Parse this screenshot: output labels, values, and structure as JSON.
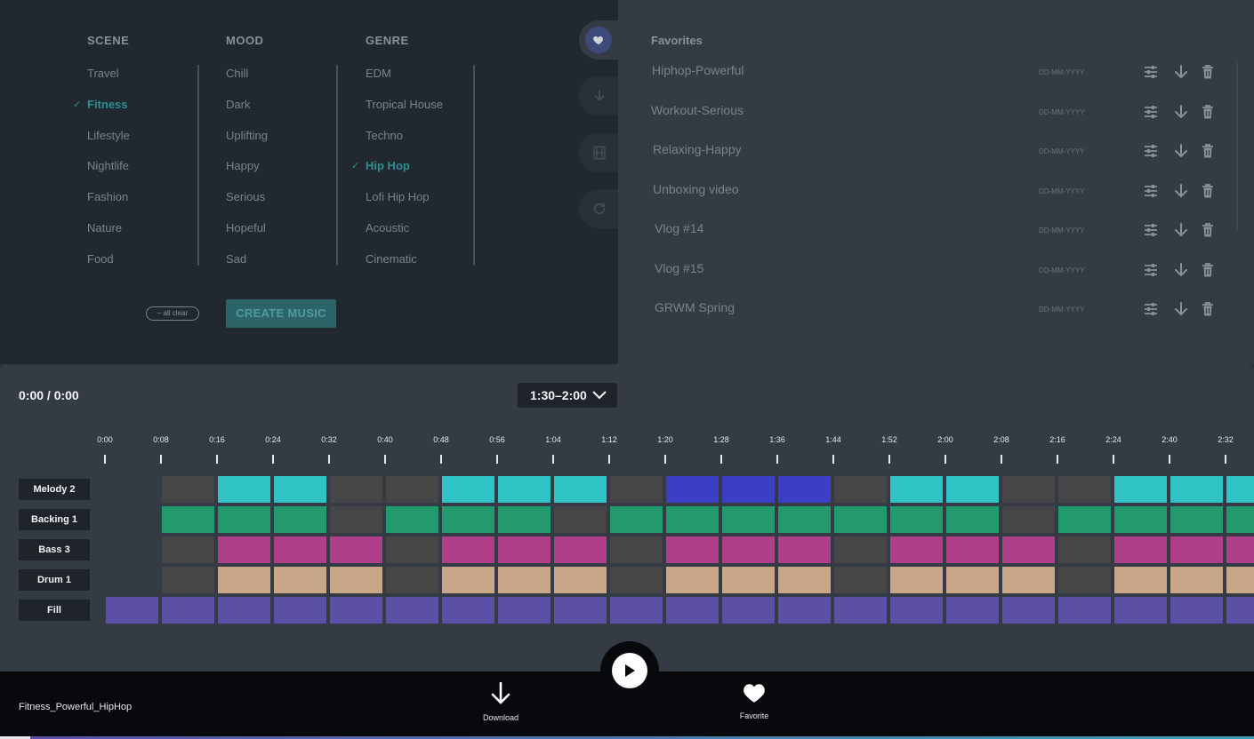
{
  "selector": {
    "scene": {
      "header": "SCENE",
      "items": [
        "Travel",
        "Fitness",
        "Lifestyle",
        "Nightlife",
        "Fashion",
        "Nature",
        "Food"
      ],
      "selected": "Fitness"
    },
    "mood": {
      "header": "MOOD",
      "items": [
        "Chill",
        "Dark",
        "Uplifting",
        "Happy",
        "Serious",
        "Hopeful",
        "Sad"
      ],
      "selected": ""
    },
    "genre": {
      "header": "GENRE",
      "items": [
        "EDM",
        "Tropical House",
        "Techno",
        "Hip Hop",
        "Lofi Hip Hop",
        "Acoustic",
        "Cinematic"
      ],
      "selected": "Hip Hop"
    },
    "all_clear_label": "– all clear",
    "create_label": "CREATE MUSIC"
  },
  "rail": {
    "icons": [
      "heart-icon",
      "download-icon",
      "film-icon",
      "refresh-icon"
    ]
  },
  "favorites": {
    "title": "Favorites",
    "items": [
      {
        "name": "Hiphop-Powerful",
        "date": "DD-MM-YYYY"
      },
      {
        "name": "Workout-Serious",
        "date": "DD-MM-YYYY"
      },
      {
        "name": "Relaxing-Happy",
        "date": "DD-MM-YYYY"
      },
      {
        "name": "Unboxing video",
        "date": "DD-MM-YYYY"
      },
      {
        "name": "Vlog #14",
        "date": "DD-MM-YYYY"
      },
      {
        "name": "Vlog #15",
        "date": "DD-MM-YYYY"
      },
      {
        "name": "GRWM Spring",
        "date": "DD-MM-YYYY"
      }
    ]
  },
  "player": {
    "time": "0:00 / 0:00",
    "range": "1:30–2:00",
    "ticks": [
      "0:00",
      "0:08",
      "0:16",
      "0:24",
      "0:32",
      "0:40",
      "0:48",
      "0:56",
      "1:04",
      "1:12",
      "1:20",
      "1:28",
      "1:36",
      "1:44",
      "1:52",
      "2:00",
      "2:08",
      "2:16",
      "2:24",
      "2:40",
      "2:32"
    ],
    "colors": {
      "empty": "#464646",
      "cyan": "#30c3c6",
      "blue": "#3b3fc6",
      "green": "#229a6e",
      "magenta": "#b03f8a",
      "tan": "#c6a686",
      "purple": "#5b4fa6"
    },
    "tracks": [
      {
        "label": "Melody 2",
        "cells": [
          "none",
          "empty",
          "cyan",
          "cyan",
          "empty",
          "empty",
          "cyan",
          "cyan",
          "cyan",
          "empty",
          "blue",
          "blue",
          "blue",
          "empty",
          "cyan",
          "cyan",
          "empty",
          "empty",
          "cyan",
          "cyan",
          "cyan"
        ]
      },
      {
        "label": "Backing 1",
        "cells": [
          "none",
          "green",
          "green",
          "green",
          "empty",
          "green",
          "green",
          "green",
          "empty",
          "green",
          "green",
          "green",
          "green",
          "green",
          "green",
          "green",
          "empty",
          "green",
          "green",
          "green",
          "green"
        ]
      },
      {
        "label": "Bass 3",
        "cells": [
          "none",
          "empty",
          "magenta",
          "magenta",
          "magenta",
          "empty",
          "magenta",
          "magenta",
          "magenta",
          "empty",
          "magenta",
          "magenta",
          "magenta",
          "empty",
          "magenta",
          "magenta",
          "magenta",
          "empty",
          "magenta",
          "magenta",
          "magenta"
        ]
      },
      {
        "label": "Drum 1",
        "cells": [
          "none",
          "empty",
          "tan",
          "tan",
          "tan",
          "empty",
          "tan",
          "tan",
          "tan",
          "empty",
          "tan",
          "tan",
          "tan",
          "empty",
          "tan",
          "tan",
          "tan",
          "empty",
          "tan",
          "tan",
          "tan"
        ]
      },
      {
        "label": "Fill",
        "cells": [
          "purple",
          "purple",
          "purple",
          "purple",
          "purple",
          "purple",
          "purple",
          "purple",
          "purple",
          "purple",
          "purple",
          "purple",
          "purple",
          "purple",
          "purple",
          "purple",
          "purple",
          "purple",
          "purple",
          "purple",
          "purple"
        ]
      }
    ]
  },
  "bottom": {
    "track_name": "Fitness_Powerful_HipHop",
    "download_label": "Download",
    "favorite_label": "Favorite"
  }
}
